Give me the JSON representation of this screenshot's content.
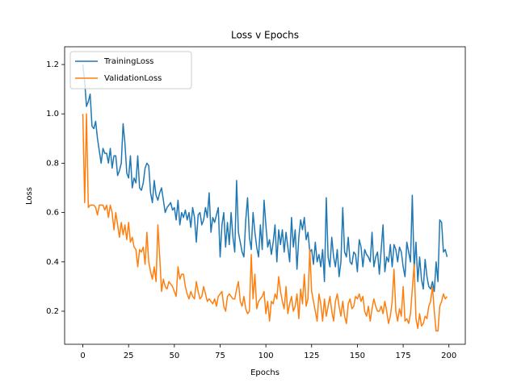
{
  "chart_data": {
    "type": "line",
    "title": "Loss v Epochs",
    "x_label": "Epochs",
    "y_label": "Loss",
    "x": [
      0,
      1,
      2,
      3,
      4,
      5,
      6,
      7,
      8,
      9,
      10,
      11,
      12,
      13,
      14,
      15,
      16,
      17,
      18,
      19,
      20,
      21,
      22,
      23,
      24,
      25,
      26,
      27,
      28,
      29,
      30,
      31,
      32,
      33,
      34,
      35,
      36,
      37,
      38,
      39,
      40,
      41,
      42,
      43,
      44,
      45,
      46,
      47,
      48,
      49,
      50,
      51,
      52,
      53,
      54,
      55,
      56,
      57,
      58,
      59,
      60,
      61,
      62,
      63,
      64,
      65,
      66,
      67,
      68,
      69,
      70,
      71,
      72,
      73,
      74,
      75,
      76,
      77,
      78,
      79,
      80,
      81,
      82,
      83,
      84,
      85,
      86,
      87,
      88,
      89,
      90,
      91,
      92,
      93,
      94,
      95,
      96,
      97,
      98,
      99,
      100,
      101,
      102,
      103,
      104,
      105,
      106,
      107,
      108,
      109,
      110,
      111,
      112,
      113,
      114,
      115,
      116,
      117,
      118,
      119,
      120,
      121,
      122,
      123,
      124,
      125,
      126,
      127,
      128,
      129,
      130,
      131,
      132,
      133,
      134,
      135,
      136,
      137,
      138,
      139,
      140,
      141,
      142,
      143,
      144,
      145,
      146,
      147,
      148,
      149,
      150,
      151,
      152,
      153,
      154,
      155,
      156,
      157,
      158,
      159,
      160,
      161,
      162,
      163,
      164,
      165,
      166,
      167,
      168,
      169,
      170,
      171,
      172,
      173,
      174,
      175,
      176,
      177,
      178,
      179,
      180,
      181,
      182,
      183,
      184,
      185,
      186,
      187,
      188,
      189,
      190,
      191,
      192,
      193,
      194,
      195,
      196,
      197,
      198,
      199
    ],
    "series": [
      {
        "name": "TrainingLoss",
        "color": "#1f77b4",
        "values": [
          1.2,
          1.13,
          1.03,
          1.05,
          1.08,
          0.95,
          0.94,
          0.97,
          0.9,
          0.85,
          0.8,
          0.86,
          0.84,
          0.84,
          0.8,
          0.86,
          0.78,
          0.83,
          0.83,
          0.75,
          0.77,
          0.8,
          0.96,
          0.88,
          0.76,
          0.74,
          0.83,
          0.7,
          0.74,
          0.72,
          0.83,
          0.7,
          0.69,
          0.72,
          0.78,
          0.8,
          0.79,
          0.68,
          0.64,
          0.73,
          0.67,
          0.65,
          0.68,
          0.7,
          0.65,
          0.6,
          0.62,
          0.63,
          0.64,
          0.61,
          0.62,
          0.57,
          0.65,
          0.55,
          0.6,
          0.58,
          0.61,
          0.57,
          0.6,
          0.54,
          0.62,
          0.58,
          0.48,
          0.59,
          0.6,
          0.55,
          0.57,
          0.62,
          0.58,
          0.68,
          0.52,
          0.58,
          0.56,
          0.59,
          0.62,
          0.42,
          0.55,
          0.6,
          0.46,
          0.56,
          0.47,
          0.6,
          0.5,
          0.44,
          0.73,
          0.52,
          0.48,
          0.44,
          0.42,
          0.57,
          0.66,
          0.5,
          0.45,
          0.6,
          0.52,
          0.46,
          0.42,
          0.55,
          0.45,
          0.65,
          0.55,
          0.46,
          0.49,
          0.43,
          0.48,
          0.55,
          0.4,
          0.53,
          0.47,
          0.53,
          0.44,
          0.52,
          0.46,
          0.4,
          0.58,
          0.46,
          0.53,
          0.37,
          0.5,
          0.57,
          0.53,
          0.58,
          0.49,
          0.52,
          0.44,
          0.45,
          0.39,
          0.48,
          0.4,
          0.43,
          0.38,
          0.45,
          0.32,
          0.66,
          0.42,
          0.38,
          0.5,
          0.42,
          0.38,
          0.45,
          0.34,
          0.4,
          0.62,
          0.44,
          0.42,
          0.5,
          0.4,
          0.39,
          0.44,
          0.43,
          0.36,
          0.49,
          0.46,
          0.38,
          0.45,
          0.43,
          0.42,
          0.4,
          0.52,
          0.38,
          0.42,
          0.44,
          0.35,
          0.45,
          0.55,
          0.36,
          0.42,
          0.4,
          0.47,
          0.38,
          0.47,
          0.45,
          0.4,
          0.46,
          0.44,
          0.38,
          0.34,
          0.48,
          0.44,
          0.4,
          0.67,
          0.37,
          0.48,
          0.32,
          0.42,
          0.33,
          0.29,
          0.41,
          0.34,
          0.3,
          0.29,
          0.32,
          0.28,
          0.4,
          0.32,
          0.57,
          0.56,
          0.44,
          0.45,
          0.42
        ]
      },
      {
        "name": "ValidationLoss",
        "color": "#ff7f0e",
        "values": [
          1.0,
          0.64,
          1.0,
          0.62,
          0.63,
          0.63,
          0.63,
          0.62,
          0.59,
          0.63,
          0.63,
          0.63,
          0.61,
          0.63,
          0.58,
          0.63,
          0.6,
          0.53,
          0.6,
          0.55,
          0.5,
          0.56,
          0.51,
          0.55,
          0.49,
          0.56,
          0.48,
          0.5,
          0.46,
          0.45,
          0.38,
          0.45,
          0.44,
          0.46,
          0.39,
          0.52,
          0.4,
          0.36,
          0.33,
          0.38,
          0.32,
          0.55,
          0.42,
          0.28,
          0.33,
          0.3,
          0.29,
          0.32,
          0.31,
          0.3,
          0.28,
          0.26,
          0.38,
          0.33,
          0.35,
          0.35,
          0.3,
          0.27,
          0.25,
          0.28,
          0.26,
          0.25,
          0.32,
          0.28,
          0.25,
          0.26,
          0.3,
          0.27,
          0.24,
          0.25,
          0.24,
          0.23,
          0.25,
          0.22,
          0.26,
          0.27,
          0.28,
          0.22,
          0.2,
          0.26,
          0.27,
          0.26,
          0.25,
          0.25,
          0.29,
          0.32,
          0.24,
          0.22,
          0.26,
          0.21,
          0.19,
          0.2,
          0.43,
          0.25,
          0.35,
          0.21,
          0.24,
          0.25,
          0.26,
          0.28,
          0.19,
          0.24,
          0.16,
          0.24,
          0.23,
          0.27,
          0.25,
          0.34,
          0.28,
          0.24,
          0.21,
          0.3,
          0.19,
          0.23,
          0.26,
          0.2,
          0.22,
          0.27,
          0.17,
          0.29,
          0.23,
          0.35,
          0.22,
          0.25,
          0.45,
          0.28,
          0.24,
          0.2,
          0.16,
          0.27,
          0.23,
          0.16,
          0.25,
          0.18,
          0.22,
          0.26,
          0.2,
          0.16,
          0.24,
          0.27,
          0.22,
          0.18,
          0.24,
          0.18,
          0.15,
          0.23,
          0.25,
          0.21,
          0.22,
          0.26,
          0.25,
          0.27,
          0.24,
          0.26,
          0.2,
          0.18,
          0.22,
          0.16,
          0.21,
          0.25,
          0.22,
          0.2,
          0.2,
          0.22,
          0.19,
          0.24,
          0.2,
          0.15,
          0.18,
          0.24,
          0.37,
          0.2,
          0.16,
          0.21,
          0.18,
          0.3,
          0.16,
          0.17,
          0.15,
          0.19,
          0.29,
          0.39,
          0.17,
          0.13,
          0.19,
          0.14,
          0.15,
          0.18,
          0.17,
          0.22,
          0.24,
          0.3,
          0.2,
          0.12,
          0.12,
          0.22,
          0.24,
          0.27,
          0.25,
          0.26
        ]
      }
    ],
    "xlim": [
      -9.95,
      208.95
    ],
    "ylim": [
      0.066,
      1.272
    ],
    "xticks": [
      0,
      25,
      50,
      75,
      100,
      125,
      150,
      175,
      200
    ],
    "yticks": [
      0.2,
      0.4,
      0.6,
      0.8,
      {
        "value": 1,
        "label": "1.0"
      },
      1.2
    ],
    "legend": "upper left"
  }
}
